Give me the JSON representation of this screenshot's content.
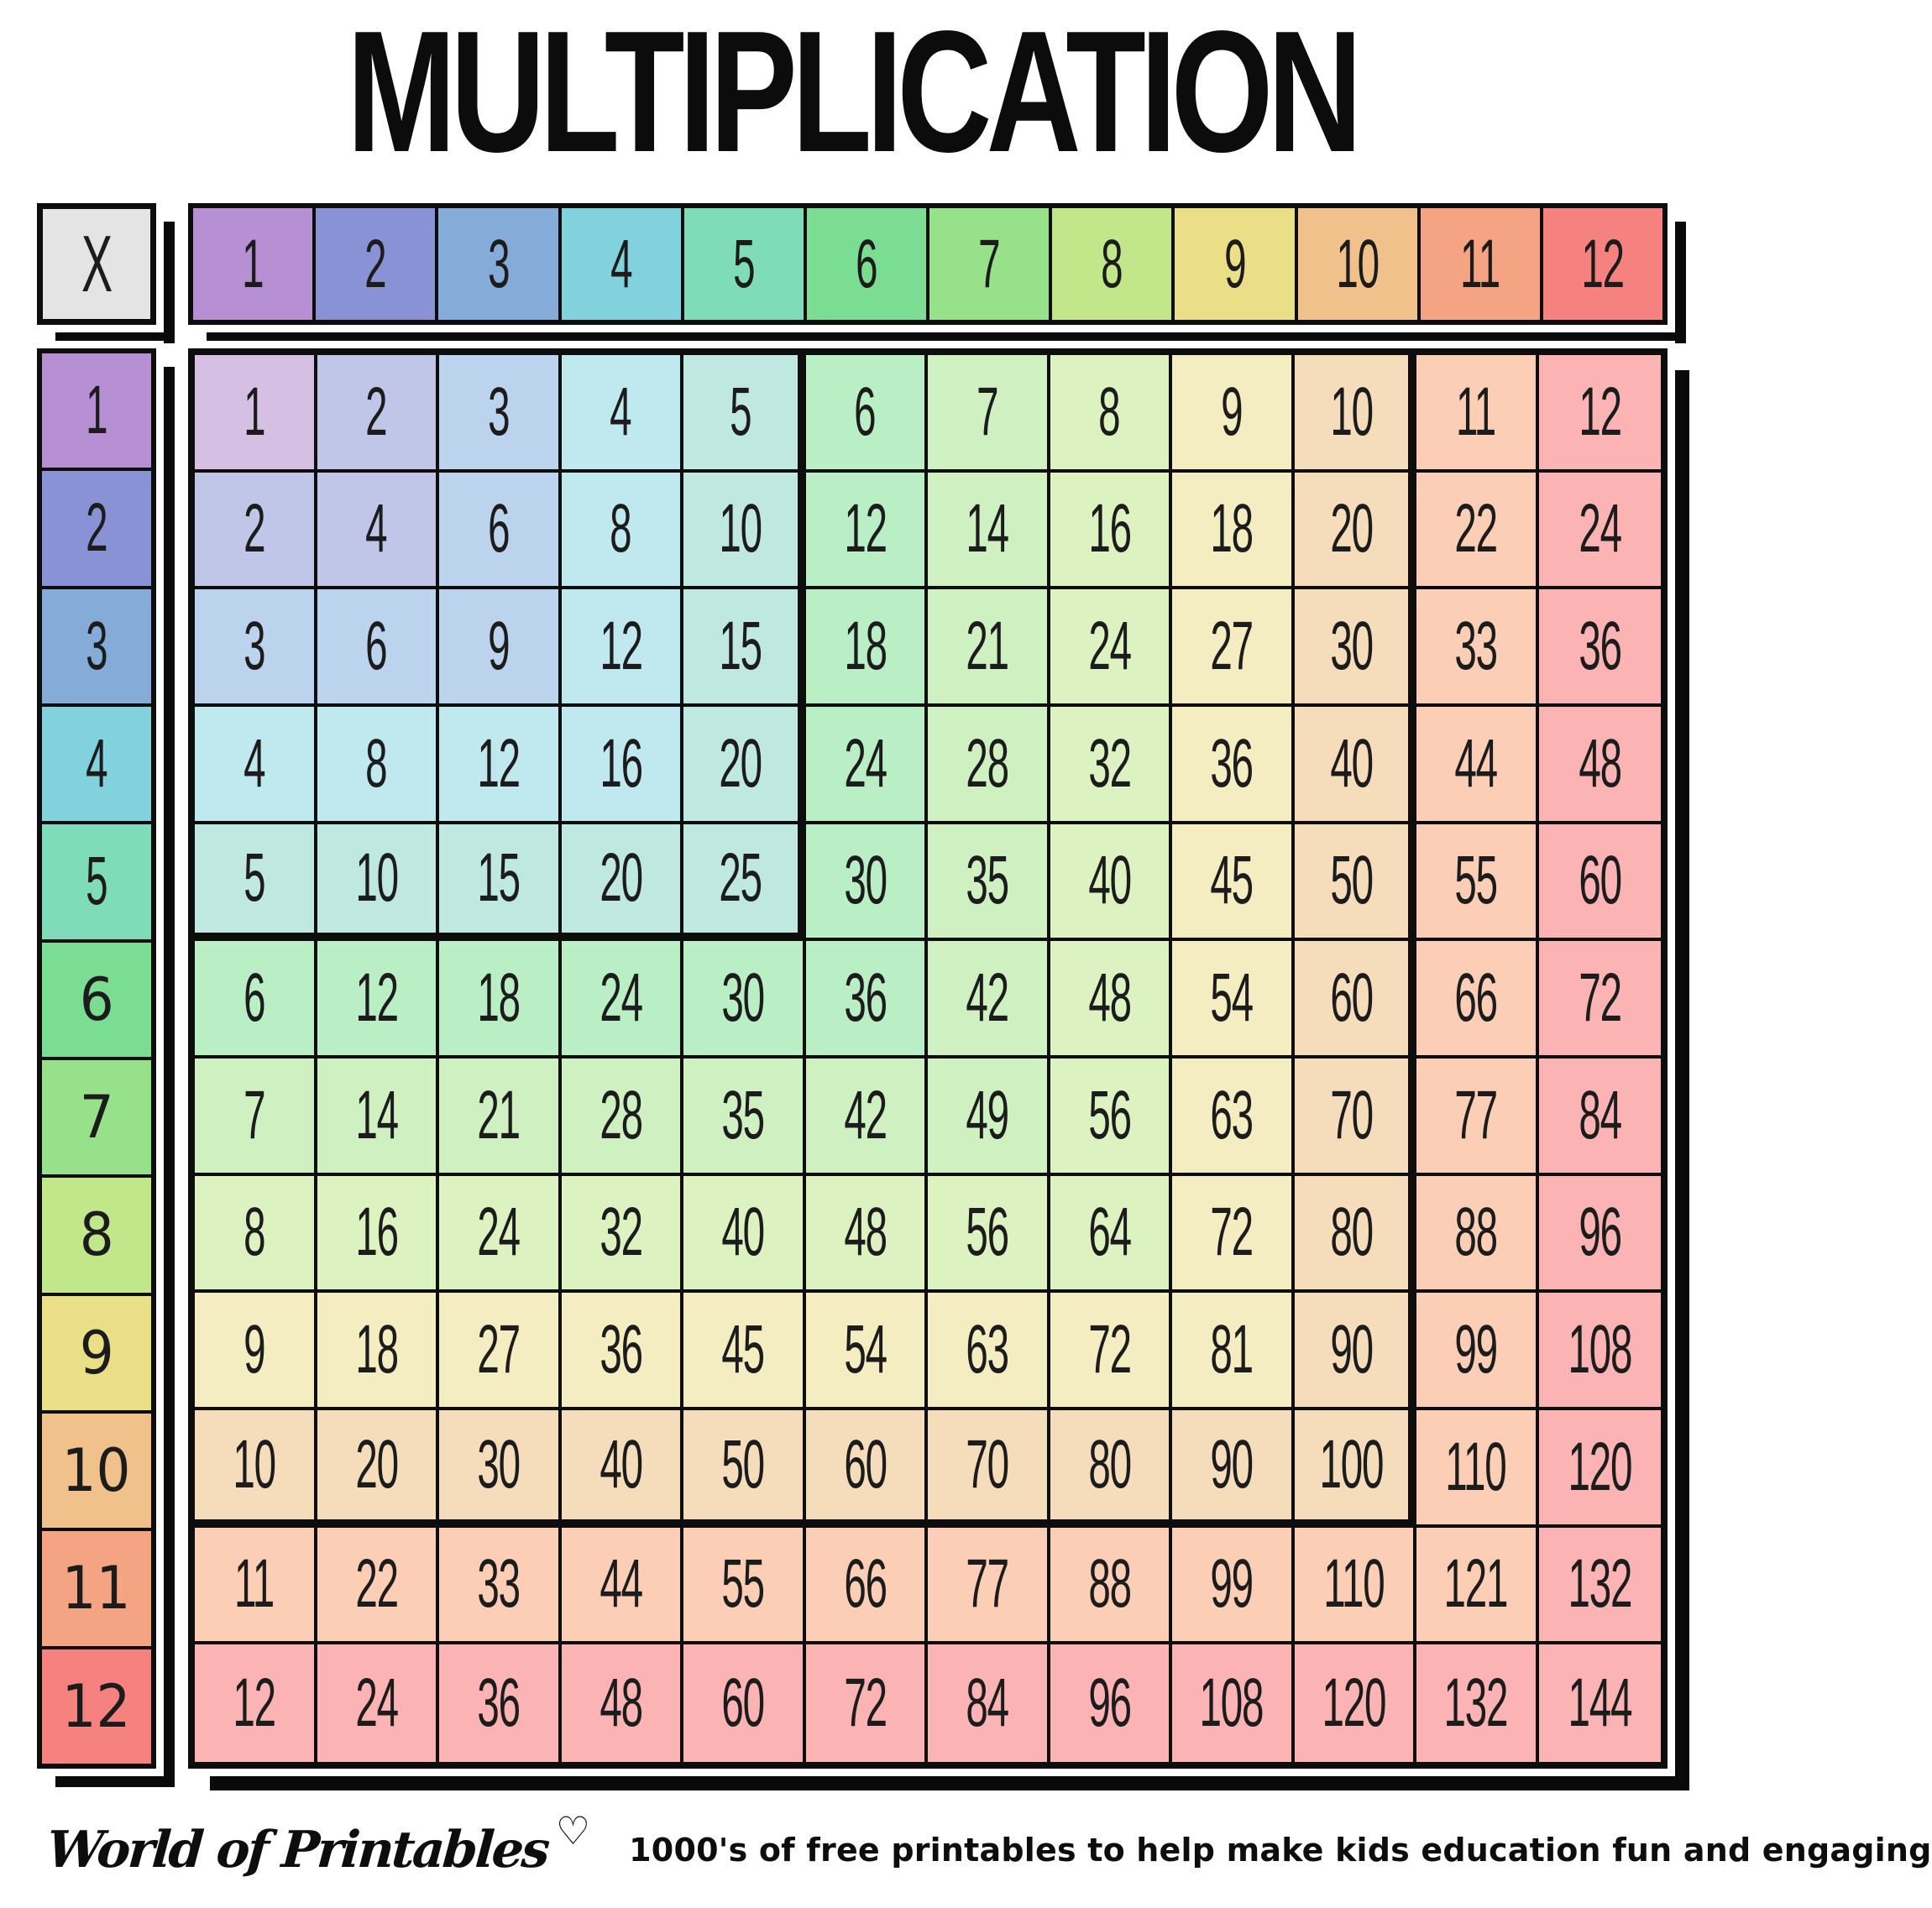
{
  "title": "MULTIPLICATION",
  "corner_label": "X",
  "palette": {
    "corner_bg": "#e4e4e4",
    "border": "#0d0d0d",
    "shadow": "#0a0a0a",
    "text": "#1c1c1c",
    "header_colors": [
      "#b78fd3",
      "#8a92d6",
      "#85abd9",
      "#82d2dd",
      "#7fdcbb",
      "#7bdd92",
      "#96e18a",
      "#c2e68a",
      "#eade86",
      "#f0c18a",
      "#f4a483",
      "#f5827f"
    ],
    "cell_tints": [
      "#d5c0e4",
      "#bfc6e8",
      "#bbd3ec",
      "#c0e8ef",
      "#bfe9e0",
      "#baefc6",
      "#cff1c2",
      "#ddf2c1",
      "#f3edc1",
      "#f5ddbb",
      "#fbceb5",
      "#fcb3b4"
    ]
  },
  "footer": {
    "brand": "World of Printables",
    "heart": "♡",
    "tagline": "1000's of free printables to help make kids education fun and engaging"
  },
  "chart_data": {
    "type": "table",
    "title": "MULTIPLICATION",
    "corner": "X",
    "columns": [
      1,
      2,
      3,
      4,
      5,
      6,
      7,
      8,
      9,
      10,
      11,
      12
    ],
    "rows": [
      1,
      2,
      3,
      4,
      5,
      6,
      7,
      8,
      9,
      10,
      11,
      12
    ],
    "values": [
      [
        1,
        2,
        3,
        4,
        5,
        6,
        7,
        8,
        9,
        10,
        11,
        12
      ],
      [
        2,
        4,
        6,
        8,
        10,
        12,
        14,
        16,
        18,
        20,
        22,
        24
      ],
      [
        3,
        6,
        9,
        12,
        15,
        18,
        21,
        24,
        27,
        30,
        33,
        36
      ],
      [
        4,
        8,
        12,
        16,
        20,
        24,
        28,
        32,
        36,
        40,
        44,
        48
      ],
      [
        5,
        10,
        15,
        20,
        25,
        30,
        35,
        40,
        45,
        50,
        55,
        60
      ],
      [
        6,
        12,
        18,
        24,
        30,
        36,
        42,
        48,
        54,
        60,
        66,
        72
      ],
      [
        7,
        14,
        21,
        28,
        35,
        42,
        49,
        56,
        63,
        70,
        77,
        84
      ],
      [
        8,
        16,
        24,
        32,
        40,
        48,
        56,
        64,
        72,
        80,
        88,
        96
      ],
      [
        9,
        18,
        27,
        36,
        45,
        54,
        63,
        72,
        81,
        90,
        99,
        108
      ],
      [
        10,
        20,
        30,
        40,
        50,
        60,
        70,
        80,
        90,
        100,
        110,
        120
      ],
      [
        11,
        22,
        33,
        44,
        55,
        66,
        77,
        88,
        99,
        110,
        121,
        132
      ],
      [
        12,
        24,
        36,
        48,
        60,
        72,
        84,
        96,
        108,
        120,
        132,
        144
      ]
    ],
    "highlight_blocks": [
      {
        "rows": "1-5",
        "cols": "1-5",
        "style": "thick-border"
      },
      {
        "rows": "1-10",
        "cols": "1-10",
        "style": "thick-border"
      }
    ],
    "color_rule": "cell tint = pastel of max(row, col)"
  }
}
